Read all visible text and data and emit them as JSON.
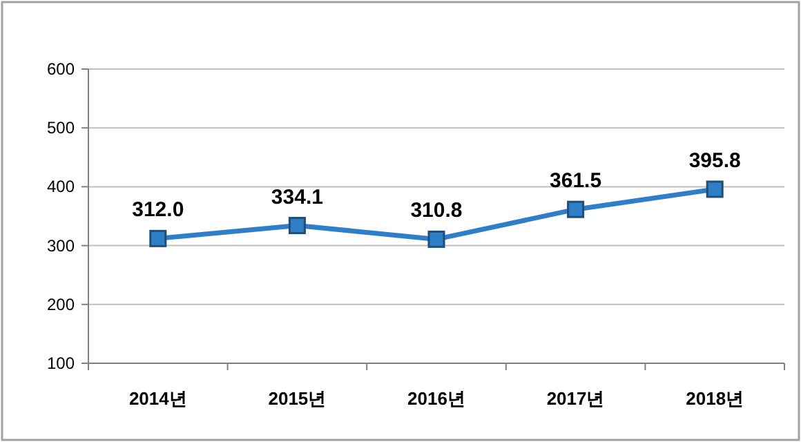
{
  "chart_data": {
    "type": "line",
    "categories": [
      "2014년",
      "2015년",
      "2016년",
      "2017년",
      "2018년"
    ],
    "series": [
      {
        "color": "#2f7fc8",
        "values": [
          312.0,
          334.1,
          310.8,
          361.5,
          395.8
        ],
        "value_labels": [
          "312.0",
          "334.1",
          "310.8",
          "361.5",
          "395.8"
        ]
      }
    ],
    "ylim": [
      100,
      600
    ],
    "yticks": [
      100,
      200,
      300,
      400,
      500,
      600
    ],
    "grid": "y",
    "marker": "square",
    "line_style": "solid"
  }
}
